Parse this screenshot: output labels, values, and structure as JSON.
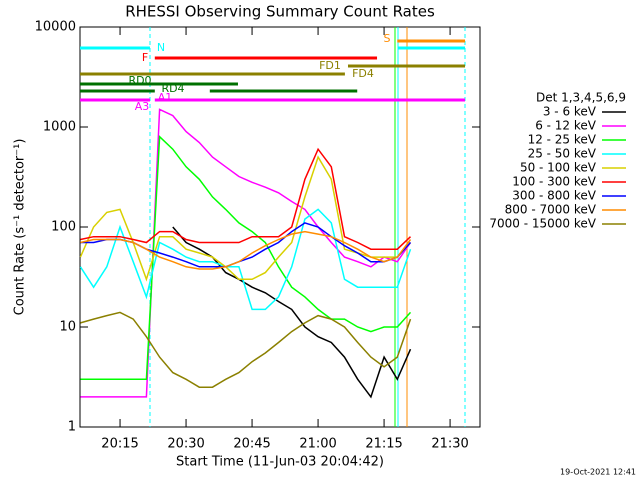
{
  "chart_data": {
    "type": "line",
    "title": "RHESSI Observing Summary Count Rates",
    "x_label": "Start Time (11-Jun-03 20:04:42)",
    "y_label": "Count Rate (s⁻¹ detector⁻¹)",
    "legend_title": "Det 1,3,4,5,6,9",
    "footer": "19-Oct-2021 12:41",
    "log_y": true,
    "grid": false,
    "legend_position": "right",
    "xlim": [
      5.9,
      96.8
    ],
    "ylim": [
      1,
      10000
    ],
    "xticks": [
      {
        "value": 15,
        "label": "20:15"
      },
      {
        "value": 30,
        "label": "20:30"
      },
      {
        "value": 45,
        "label": "20:45"
      },
      {
        "value": 60,
        "label": "21:00"
      },
      {
        "value": 75,
        "label": "21:15"
      },
      {
        "value": 90,
        "label": "21:30"
      }
    ],
    "yticks": [
      1,
      10,
      100,
      1000,
      10000
    ],
    "x": [
      6,
      9,
      12,
      15,
      18,
      21,
      24,
      27,
      30,
      33,
      36,
      39,
      42,
      45,
      48,
      51,
      54,
      57,
      60,
      63,
      66,
      69,
      72,
      75,
      78,
      81
    ],
    "series": [
      {
        "name": "3 - 6 keV",
        "color": "#000000",
        "values": [
          null,
          null,
          null,
          null,
          null,
          null,
          null,
          100,
          70,
          60,
          50,
          35,
          30,
          25,
          22,
          18,
          15,
          10,
          8,
          7,
          5,
          3,
          2,
          5,
          3,
          6
        ]
      },
      {
        "name": "6 - 12 keV",
        "color": "#ff00ff",
        "values": [
          2,
          2,
          2,
          2,
          2,
          2,
          1500,
          1300,
          900,
          700,
          500,
          400,
          320,
          280,
          250,
          220,
          180,
          150,
          100,
          70,
          50,
          45,
          40,
          50,
          45,
          70
        ]
      },
      {
        "name": "12 - 25 keV",
        "color": "#00ff00",
        "values": [
          3,
          3,
          3,
          3,
          3,
          3,
          800,
          600,
          400,
          300,
          200,
          150,
          110,
          90,
          70,
          40,
          25,
          20,
          15,
          12,
          12,
          10,
          9,
          10,
          10,
          14
        ]
      },
      {
        "name": "25 - 50 keV",
        "color": "#00ffff",
        "values": [
          40,
          25,
          40,
          100,
          45,
          20,
          70,
          60,
          50,
          45,
          45,
          40,
          40,
          15,
          15,
          20,
          40,
          120,
          150,
          110,
          30,
          25,
          25,
          25,
          25,
          60
        ]
      },
      {
        "name": "50 - 100 keV",
        "color": "#d8d000",
        "values": [
          50,
          100,
          140,
          150,
          70,
          30,
          80,
          80,
          60,
          55,
          50,
          40,
          30,
          30,
          35,
          50,
          70,
          200,
          500,
          300,
          60,
          55,
          50,
          50,
          50,
          70
        ]
      },
      {
        "name": "100 - 300 keV",
        "color": "#ff0000",
        "values": [
          75,
          80,
          80,
          80,
          75,
          70,
          90,
          90,
          75,
          70,
          70,
          70,
          70,
          80,
          80,
          80,
          100,
          300,
          600,
          400,
          80,
          70,
          60,
          60,
          60,
          80
        ]
      },
      {
        "name": "300 - 800 keV",
        "color": "#0000ff",
        "values": [
          70,
          70,
          75,
          75,
          70,
          60,
          55,
          50,
          45,
          40,
          40,
          40,
          45,
          50,
          60,
          70,
          90,
          110,
          100,
          80,
          65,
          55,
          45,
          45,
          50,
          70
        ]
      },
      {
        "name": "800 - 7000 keV",
        "color": "#ff8c00",
        "values": [
          70,
          75,
          75,
          75,
          70,
          60,
          50,
          45,
          40,
          38,
          38,
          40,
          45,
          55,
          65,
          75,
          85,
          90,
          85,
          80,
          70,
          60,
          50,
          45,
          50,
          75
        ]
      },
      {
        "name": "7000 - 15000 keV",
        "color": "#8b8000",
        "values": [
          11,
          12,
          13,
          14,
          12,
          8,
          5,
          3.5,
          3,
          2.5,
          2.5,
          3,
          3.5,
          4.5,
          5.5,
          7,
          9,
          11,
          13,
          12,
          10,
          7,
          5,
          4,
          5,
          12
        ]
      }
    ],
    "flags": [
      {
        "label": "N",
        "color": "#00ffff",
        "segments": [
          [
            5.9,
            21.8
          ],
          [
            78.2,
            93.4
          ]
        ]
      },
      {
        "label": "F",
        "color": "#ff0000",
        "segments": [
          [
            22.9,
            73.4
          ]
        ]
      },
      {
        "label": "FD1",
        "color": "#8b8000",
        "segments": [
          [
            66.8,
            93.4
          ]
        ]
      },
      {
        "label": "FD4",
        "color": "#8b8000",
        "segments": [
          [
            5.9,
            66.1
          ]
        ]
      },
      {
        "label": "RD0",
        "color": "#007000",
        "segments": [
          [
            5.9,
            41.8
          ]
        ]
      },
      {
        "label": "RD4",
        "color": "#007000",
        "segments": [
          [
            5.9,
            22.9
          ],
          [
            35.4,
            68.9
          ]
        ]
      },
      {
        "label": "A3",
        "color": "#ff00ff",
        "segments": [
          [
            5.9,
            21.8
          ]
        ]
      },
      {
        "label": "A1",
        "color": "#ff00ff",
        "segments": [
          [
            22.9,
            93.4
          ]
        ]
      },
      {
        "label": "S",
        "color": "#ff8c00",
        "segments": [
          [
            78.0,
            93.4
          ]
        ]
      }
    ]
  }
}
